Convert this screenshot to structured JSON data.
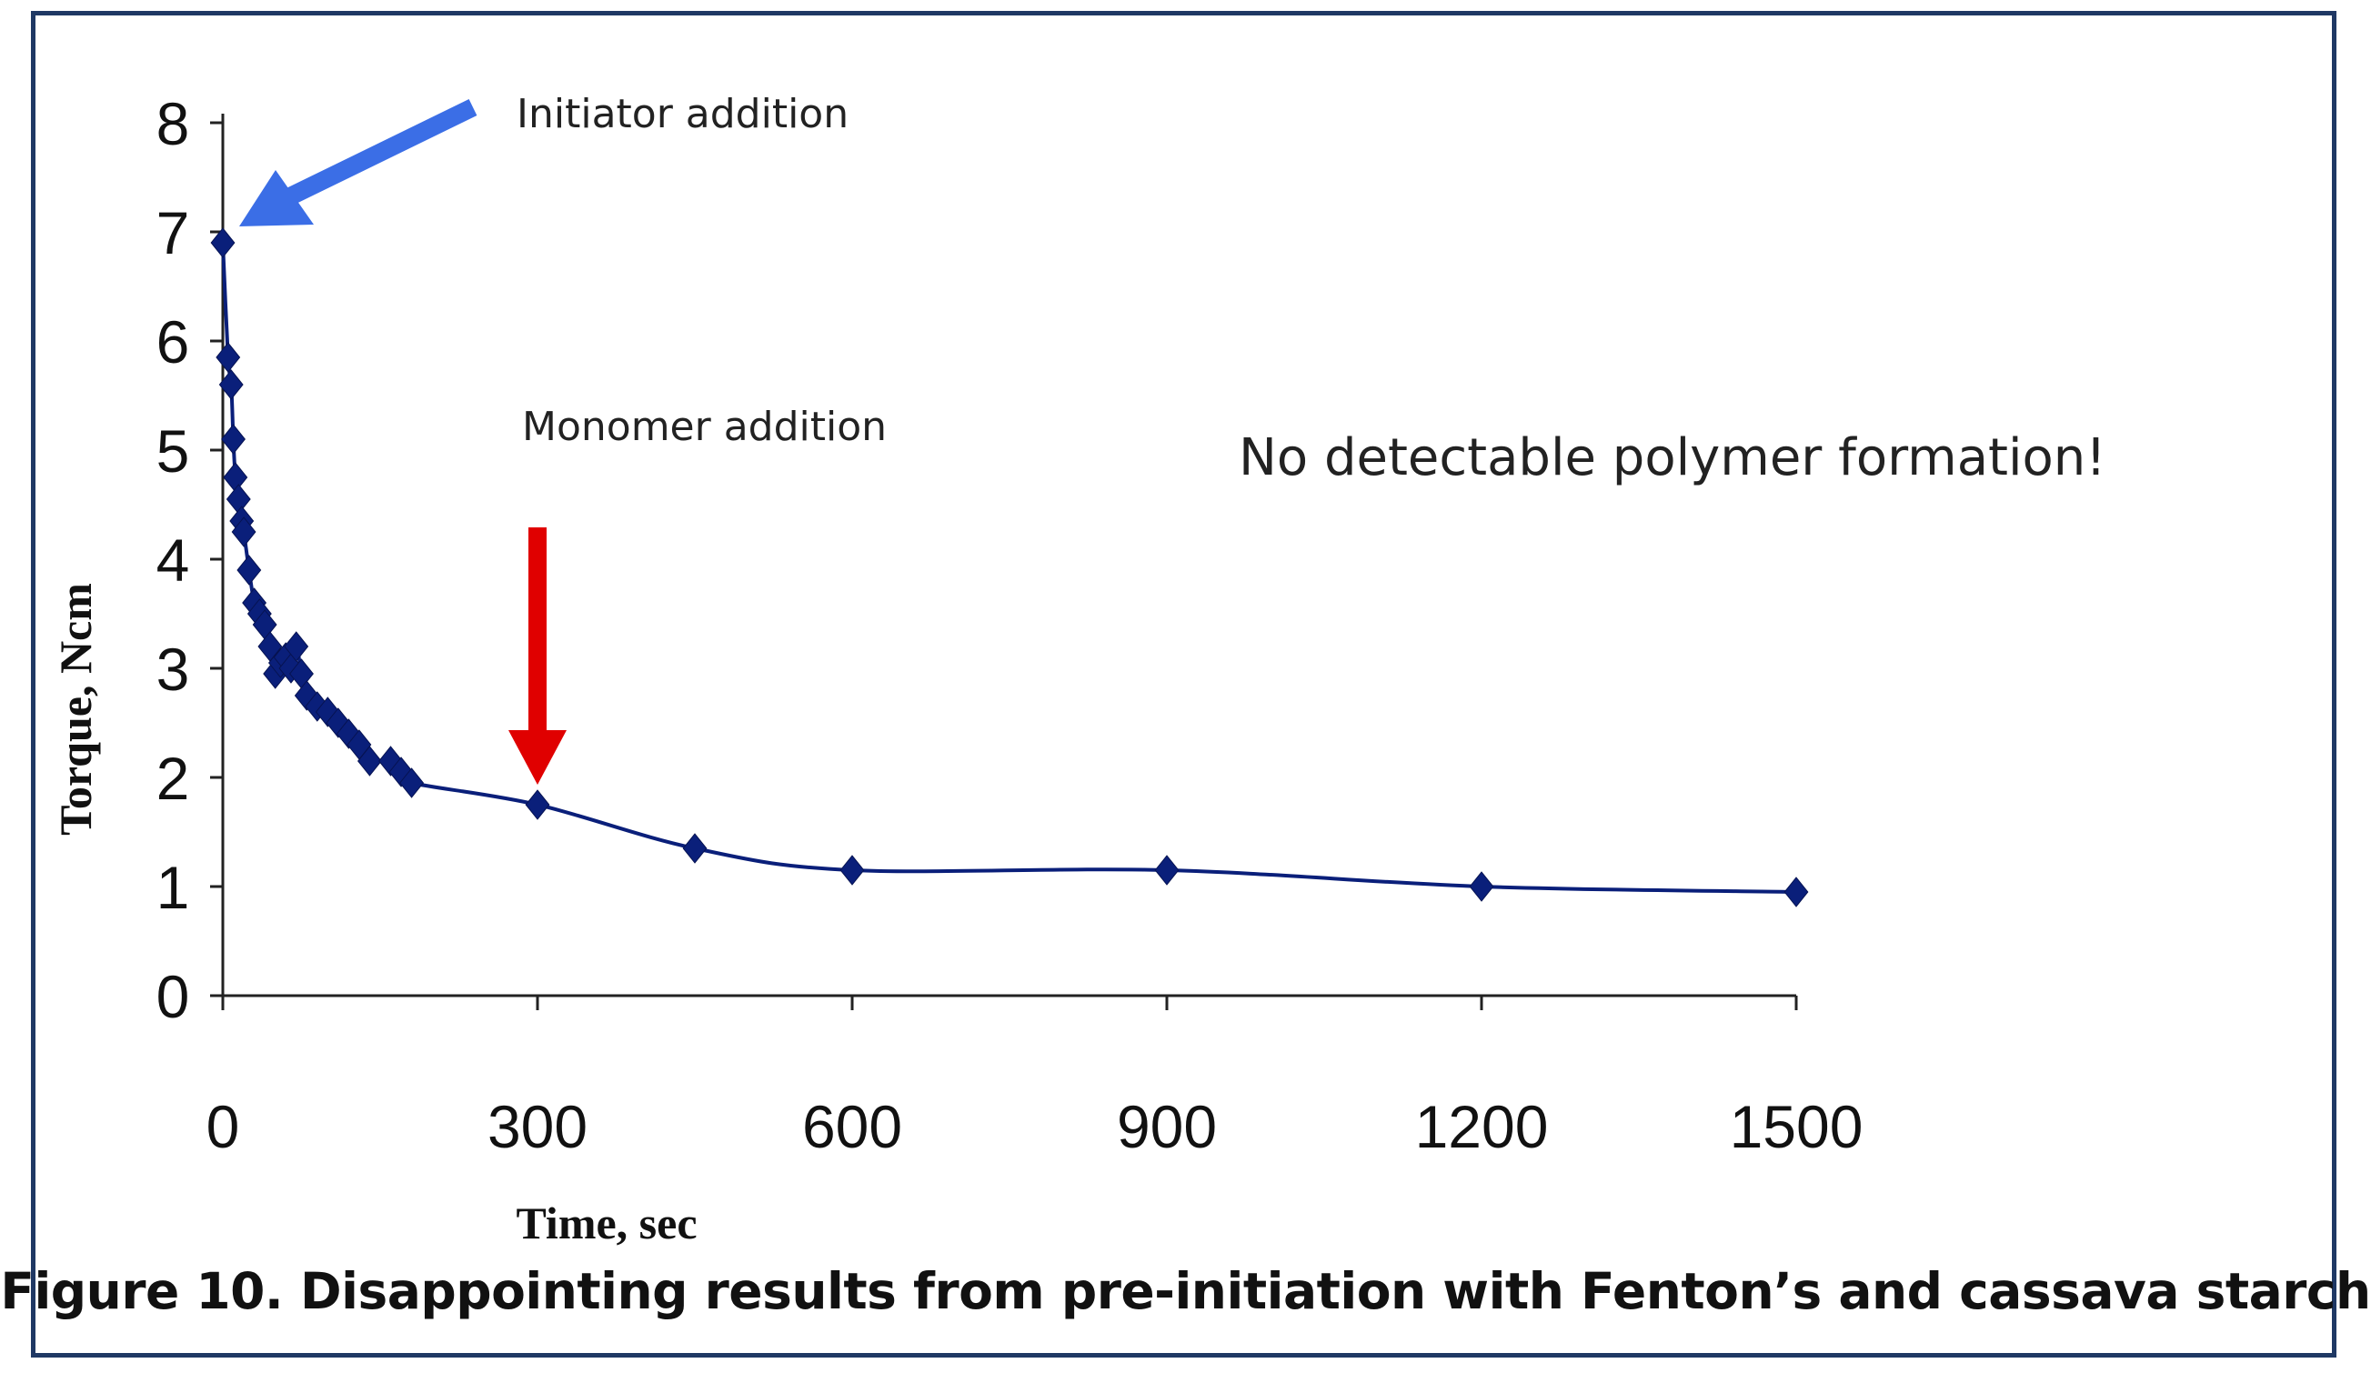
{
  "caption": "Figure 10. Disappointing results from pre-initiation with Fenton’s and cassava starch",
  "chart_data": {
    "type": "line",
    "title": "",
    "xlabel": "Time, sec",
    "ylabel": "Torque, Ncm",
    "xlim": [
      0,
      1500
    ],
    "ylim": [
      0,
      8
    ],
    "x_ticks": [
      0,
      300,
      600,
      900,
      1200,
      1500
    ],
    "y_ticks": [
      0,
      1,
      2,
      3,
      4,
      5,
      6,
      7,
      8
    ],
    "grid": false,
    "legend": "none",
    "marker": "diamond",
    "colors": {
      "series": "#0a1f7a",
      "initiator_arrow": "#3b6ee6",
      "monomer_arrow": "#e00000"
    },
    "series": [
      {
        "x": [
          0,
          5,
          8,
          10,
          12,
          15,
          18,
          20,
          25,
          30,
          35,
          40,
          45,
          50,
          55,
          60,
          65,
          70,
          75,
          80,
          90,
          100,
          110,
          120,
          130,
          140,
          160,
          170,
          180,
          300,
          450,
          600,
          900,
          1200,
          1500
        ],
        "y": [
          6.9,
          5.85,
          5.6,
          5.1,
          4.75,
          4.55,
          4.35,
          4.25,
          3.9,
          3.6,
          3.5,
          3.4,
          3.2,
          2.95,
          3.05,
          3.1,
          3.0,
          3.2,
          2.95,
          2.75,
          2.65,
          2.6,
          2.5,
          2.4,
          2.3,
          2.15,
          2.15,
          2.05,
          1.95,
          1.75,
          1.35,
          1.15,
          1.15,
          1.0,
          0.95
        ]
      }
    ],
    "annotations": [
      {
        "text": "Initiator addition",
        "x": 0,
        "y": 6.9
      },
      {
        "text": "Monomer addition",
        "x": 300,
        "y": 1.75
      },
      {
        "text": "No detectable polymer formation!"
      }
    ]
  }
}
